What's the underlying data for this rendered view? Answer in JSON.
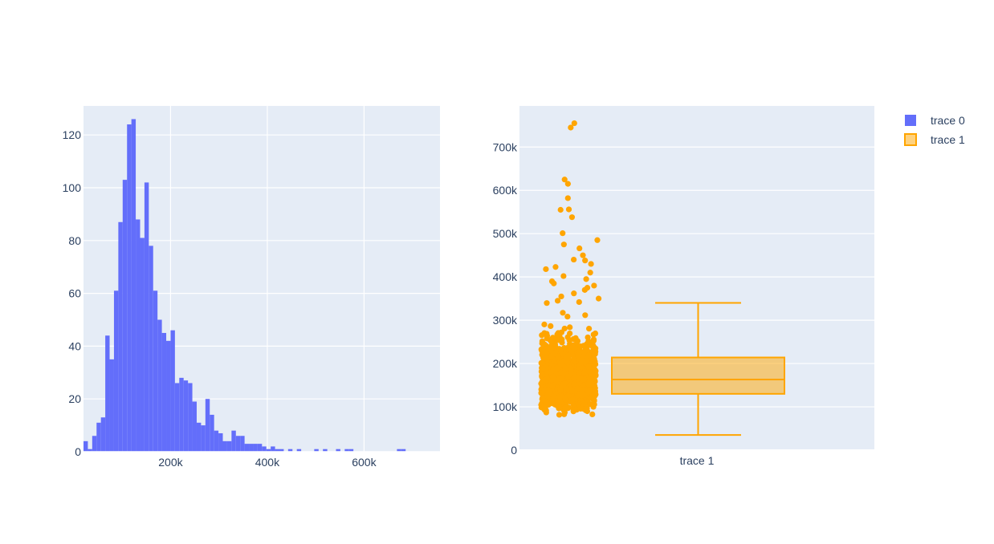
{
  "chart_data": [
    {
      "type": "bar",
      "subtype": "histogram",
      "series_name": "trace 0",
      "color": "#636efa",
      "bin_width": 9000,
      "bin_start": 20000,
      "xlim": [
        20000,
        757000
      ],
      "ylim": [
        0,
        131
      ],
      "x_ticks": [
        200000,
        400000,
        600000
      ],
      "x_tick_labels": [
        "200k",
        "400k",
        "600k"
      ],
      "y_ticks": [
        0,
        20,
        40,
        60,
        80,
        100,
        120
      ],
      "y_tick_labels": [
        "0",
        "20",
        "40",
        "60",
        "80",
        "100",
        "120"
      ],
      "counts": [
        4,
        1,
        6,
        11,
        13,
        44,
        35,
        61,
        87,
        103,
        124,
        126,
        88,
        81,
        102,
        78,
        61,
        50,
        45,
        42,
        46,
        26,
        28,
        27,
        26,
        19,
        11,
        10,
        20,
        14,
        8,
        7,
        4,
        4,
        8,
        6,
        6,
        3,
        3,
        3,
        3,
        2,
        1,
        2,
        1,
        1,
        0,
        1,
        0,
        1,
        0,
        0,
        0,
        1,
        0,
        1,
        0,
        0,
        1,
        0,
        1,
        1,
        0,
        0,
        0,
        0,
        0,
        0,
        0,
        0,
        0,
        0,
        1,
        1
      ],
      "grid": true
    },
    {
      "type": "box",
      "series_name": "trace 1",
      "color": "#ffa500",
      "category": "trace 1",
      "ylim": [
        0,
        795000
      ],
      "y_ticks": [
        0,
        100000,
        200000,
        300000,
        400000,
        500000,
        600000,
        700000
      ],
      "y_tick_labels": [
        "0",
        "100k",
        "200k",
        "300k",
        "400k",
        "500k",
        "600k",
        "700k"
      ],
      "box": {
        "min": 35000,
        "q1": 130000,
        "median": 163000,
        "q3": 214000,
        "upper_fence": 340000
      },
      "points": "all",
      "outlier_values": [
        755000,
        745000,
        625000,
        615000,
        582000,
        556000,
        555000,
        538000,
        501000,
        485000,
        475000,
        466000,
        450000,
        440000,
        438000,
        430000,
        423000,
        418000,
        410000,
        402000,
        395000,
        390000,
        385000,
        380000,
        375000,
        370000,
        362000,
        355000,
        350000,
        345000,
        342000
      ],
      "grid": true
    }
  ],
  "legend": {
    "position": "top-right",
    "items": [
      {
        "label": "trace 0",
        "color": "#636efa",
        "style": "solid"
      },
      {
        "label": "trace 1",
        "color": "#ffa500",
        "style": "box"
      }
    ]
  },
  "colors": {
    "plot_bg": "#e5ecf6",
    "grid": "#ffffff",
    "tick_text": "#2a3f5f"
  }
}
